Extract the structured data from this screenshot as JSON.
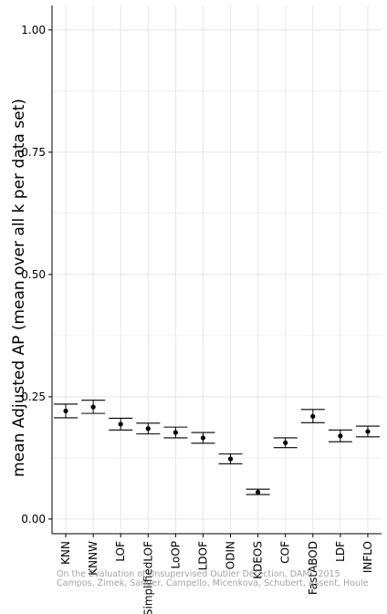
{
  "chart_data": {
    "type": "errorbar",
    "title": "",
    "xlabel": "",
    "ylabel": "mean Adjusted AP (mean over all k per data set)",
    "ylim": [
      -0.03,
      1.05
    ],
    "yticks": [
      "0.00",
      "0.25",
      "0.50",
      "0.75",
      "1.00"
    ],
    "ytick_values": [
      0,
      0.25,
      0.5,
      0.75,
      1.0
    ],
    "grid": true,
    "categories": [
      "KNN",
      "KNNW",
      "LOF",
      "SimplifiedLOF",
      "LoOP",
      "LDOF",
      "ODIN",
      "KDEOS",
      "COF",
      "FastABOD",
      "LDF",
      "INFLO"
    ],
    "series": [
      {
        "means": [
          0.221,
          0.229,
          0.194,
          0.185,
          0.177,
          0.166,
          0.123,
          0.055,
          0.156,
          0.21,
          0.17,
          0.179
        ],
        "lower": [
          0.207,
          0.216,
          0.182,
          0.174,
          0.166,
          0.155,
          0.113,
          0.05,
          0.146,
          0.197,
          0.158,
          0.168
        ],
        "upper": [
          0.235,
          0.243,
          0.206,
          0.196,
          0.188,
          0.177,
          0.133,
          0.061,
          0.166,
          0.224,
          0.182,
          0.19
        ]
      }
    ]
  },
  "watermark": {
    "line1": "On the Evaluation of Unsupervised Outlier Detection, DAMI, 2015",
    "line2": "Campos, Zimek, Sander, Campello, Micenkova, Schubert, Assent, Houle"
  },
  "colors": {
    "panel_bg": "#ffffff",
    "grid": "#e6e6e6",
    "axis": "#000000",
    "marker": "#000000"
  }
}
